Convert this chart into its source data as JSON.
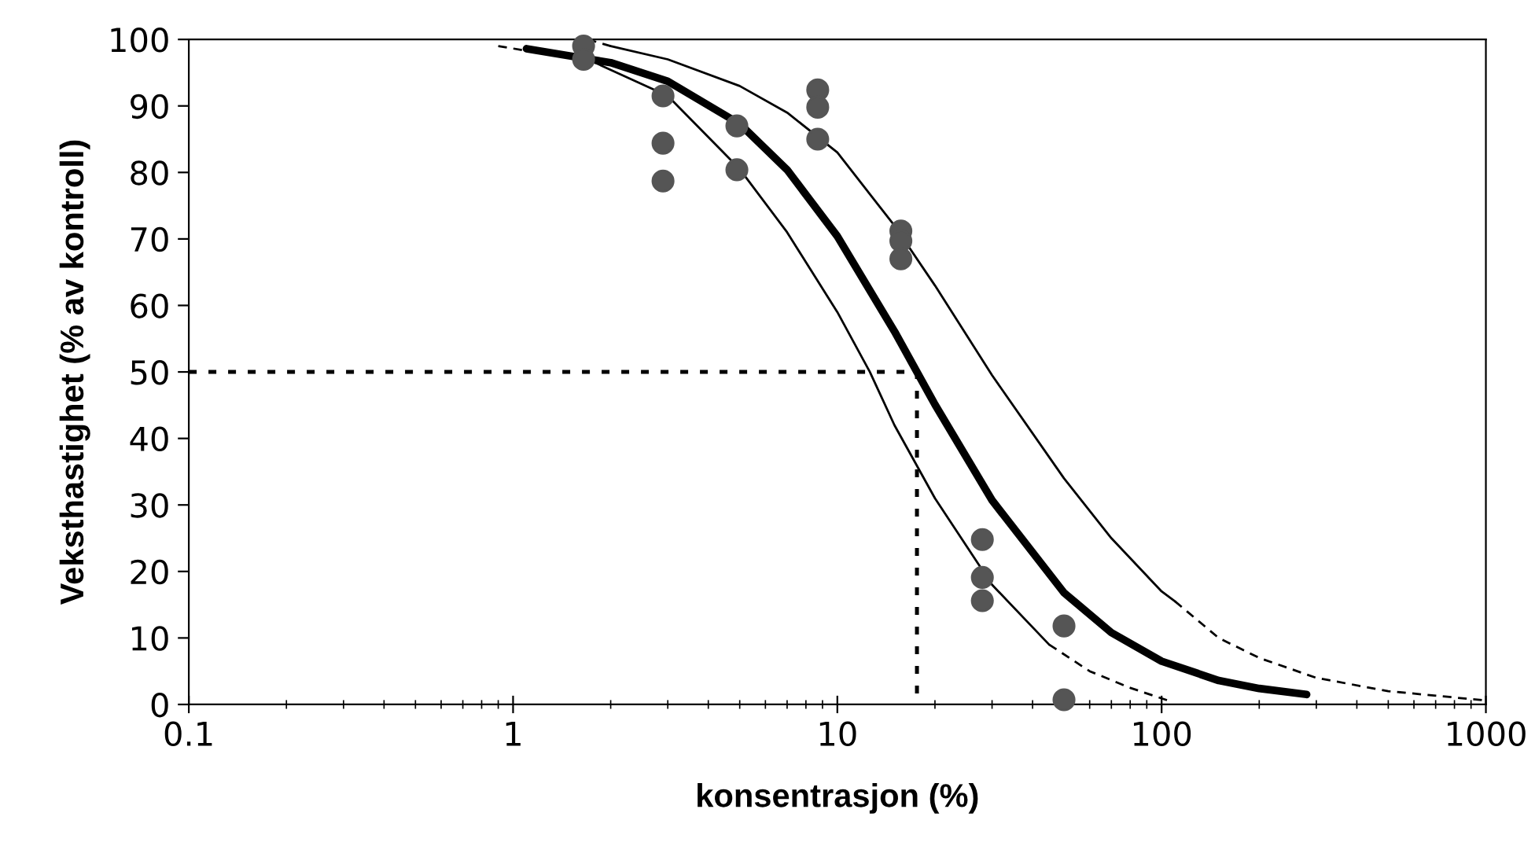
{
  "chart_data": {
    "type": "line",
    "xlabel": "konsentrasjon (%)",
    "ylabel": "Veksthastighet (% av kontroll)",
    "log": "x",
    "xlim": [
      0.1,
      1000
    ],
    "xticks": [
      0.1,
      1,
      10,
      100,
      1000
    ],
    "ylim": [
      0,
      100
    ],
    "yticks": [
      0,
      10,
      20,
      30,
      40,
      50,
      60,
      70,
      80,
      90,
      100
    ],
    "grid": false,
    "series": [
      {
        "type": "line",
        "color": "#000000",
        "line_style": "solid",
        "marker": "none",
        "x": [
          1.1,
          2,
          3,
          5,
          7,
          10,
          15,
          20,
          30,
          50,
          70,
          100,
          150,
          200,
          280
        ],
        "values": [
          98.6,
          96.5,
          93.7,
          87.3,
          80.4,
          70.4,
          56.1,
          45.1,
          30.7,
          16.8,
          10.8,
          6.5,
          3.6,
          2.4,
          1.5
        ]
      },
      {
        "type": "line",
        "color": "#000000",
        "line_style": "dashed",
        "marker": "none",
        "x": [
          1.7,
          2
        ],
        "values": [
          100,
          99
        ]
      },
      {
        "type": "line",
        "color": "#000000",
        "line_style": "solid",
        "marker": "none",
        "x": [
          2,
          3,
          5,
          7,
          10,
          15,
          20,
          30,
          50,
          70,
          100,
          110
        ],
        "values": [
          99,
          97,
          93,
          89,
          83,
          72,
          63,
          49.5,
          34,
          25,
          17,
          15.5
        ]
      },
      {
        "type": "line",
        "color": "#000000",
        "line_style": "dashed",
        "marker": "none",
        "x": [
          110,
          150,
          200,
          300,
          500,
          1000
        ],
        "values": [
          15.5,
          10,
          7,
          4,
          2,
          0.6
        ]
      },
      {
        "type": "line",
        "color": "#000000",
        "line_style": "dashed",
        "marker": "none",
        "x": [
          0.9,
          1.2,
          1.7
        ],
        "values": [
          99,
          98,
          97
        ]
      },
      {
        "type": "line",
        "color": "#000000",
        "line_style": "solid",
        "marker": "none",
        "x": [
          1.7,
          3,
          5,
          7,
          10,
          12.6,
          15,
          20,
          30,
          45
        ],
        "values": [
          97,
          91.5,
          80.5,
          71,
          59,
          50,
          42,
          31,
          18,
          9
        ]
      },
      {
        "type": "line",
        "color": "#000000",
        "line_style": "dashed",
        "marker": "none",
        "x": [
          45,
          60,
          80,
          106
        ],
        "values": [
          9,
          5,
          2.5,
          0.5
        ]
      },
      {
        "type": "line",
        "color": "#000000",
        "line_style": "dotted",
        "marker": "none",
        "x": [
          0.1,
          17.6,
          17.6
        ],
        "values": [
          50,
          50,
          0
        ]
      },
      {
        "type": "scatter",
        "color": "#555555",
        "marker": "circle",
        "x": [
          1.65,
          1.65,
          2.9,
          2.9,
          2.9,
          4.9,
          4.9,
          8.7,
          8.7,
          8.7,
          15.7,
          15.7,
          15.7,
          28,
          28,
          28,
          50,
          50
        ],
        "values": [
          99,
          97,
          91.5,
          84.4,
          78.7,
          87,
          80.4,
          92.4,
          89.8,
          85,
          71.2,
          69.7,
          67,
          24.8,
          19.1,
          15.6,
          11.8,
          0.7
        ]
      }
    ]
  }
}
